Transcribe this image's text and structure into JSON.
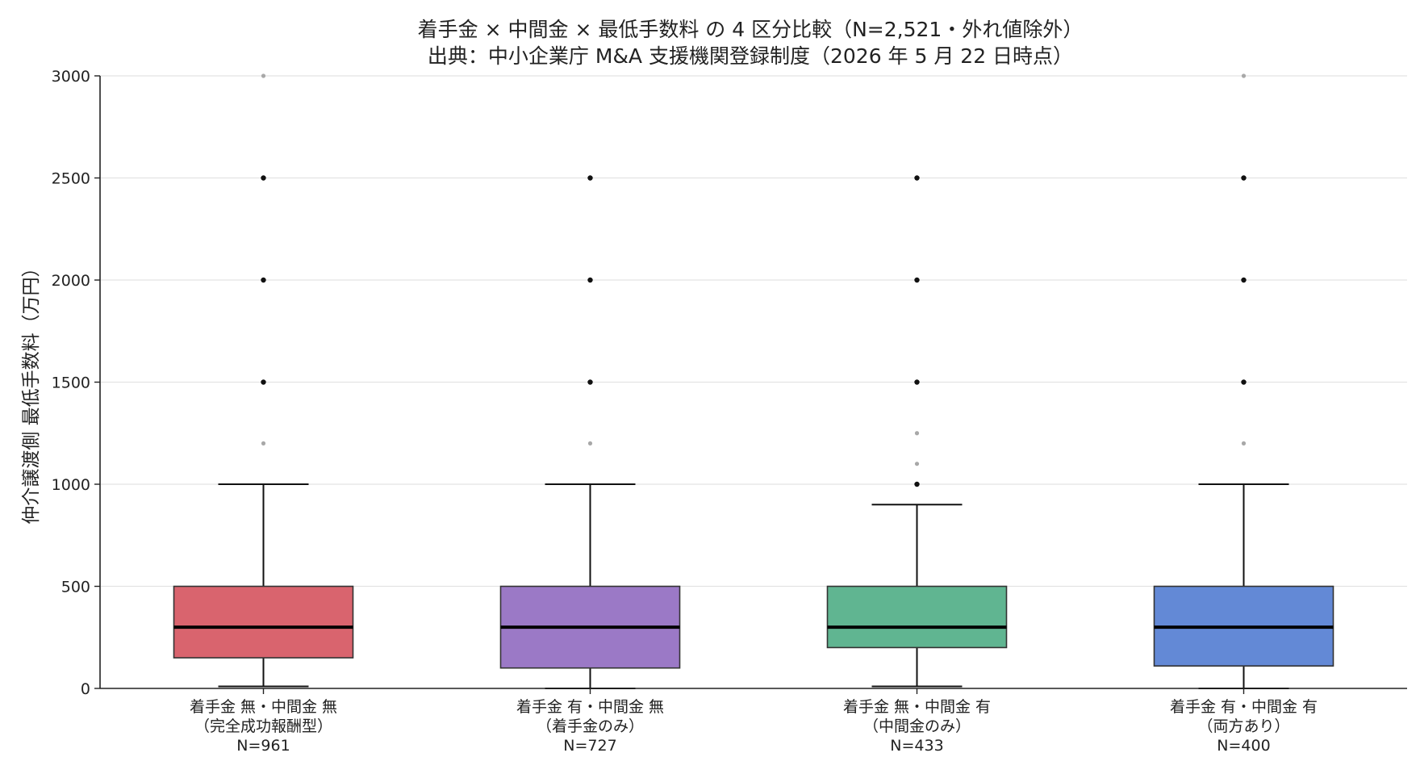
{
  "chart_data": {
    "type": "box",
    "title": "着手金 × 中間金 × 最低手数料 の 4 区分比較（N=2,521・外れ値除外）",
    "subtitle": "出典：中小企業庁 M&A 支援機関登録制度（2026 年 5 月 22 日時点）",
    "ylabel": "仲介譲渡側 最低手数料（万円）",
    "xlabel": "",
    "ylim": [
      0,
      3000
    ],
    "yticks": [
      "0",
      "500",
      "1000",
      "1500",
      "2000",
      "2500",
      "3000"
    ],
    "grid": "horizontal",
    "categories": [
      {
        "label_line1": "着手金 無・中間金 無",
        "label_line2": "（完全成功報酬型）",
        "label_line3": "N=961",
        "color": "#d9646e",
        "min": 10,
        "q1": 150,
        "median": 300,
        "q3": 500,
        "max": 1000,
        "outliers": [
          1200,
          1500,
          2000,
          2500,
          3000
        ]
      },
      {
        "label_line1": "着手金 有・中間金 無",
        "label_line2": "（着手金のみ）",
        "label_line3": "N=727",
        "color": "#9b79c6",
        "min": 0,
        "q1": 100,
        "median": 300,
        "q3": 500,
        "max": 1000,
        "outliers": [
          1200,
          1500,
          2000,
          2500
        ]
      },
      {
        "label_line1": "着手金 無・中間金 有",
        "label_line2": "（中間金のみ）",
        "label_line3": "N=433",
        "color": "#60b591",
        "min": 10,
        "q1": 200,
        "median": 300,
        "q3": 500,
        "max": 900,
        "outliers": [
          1000,
          1100,
          1250,
          1500,
          2000,
          2500
        ]
      },
      {
        "label_line1": "着手金 有・中間金 有",
        "label_line2": "（両方あり）",
        "label_line3": "N=400",
        "color": "#6389d6",
        "min": 0,
        "q1": 110,
        "median": 300,
        "q3": 500,
        "max": 1000,
        "outliers": [
          1200,
          1500,
          2000,
          2500,
          3000
        ]
      }
    ]
  }
}
